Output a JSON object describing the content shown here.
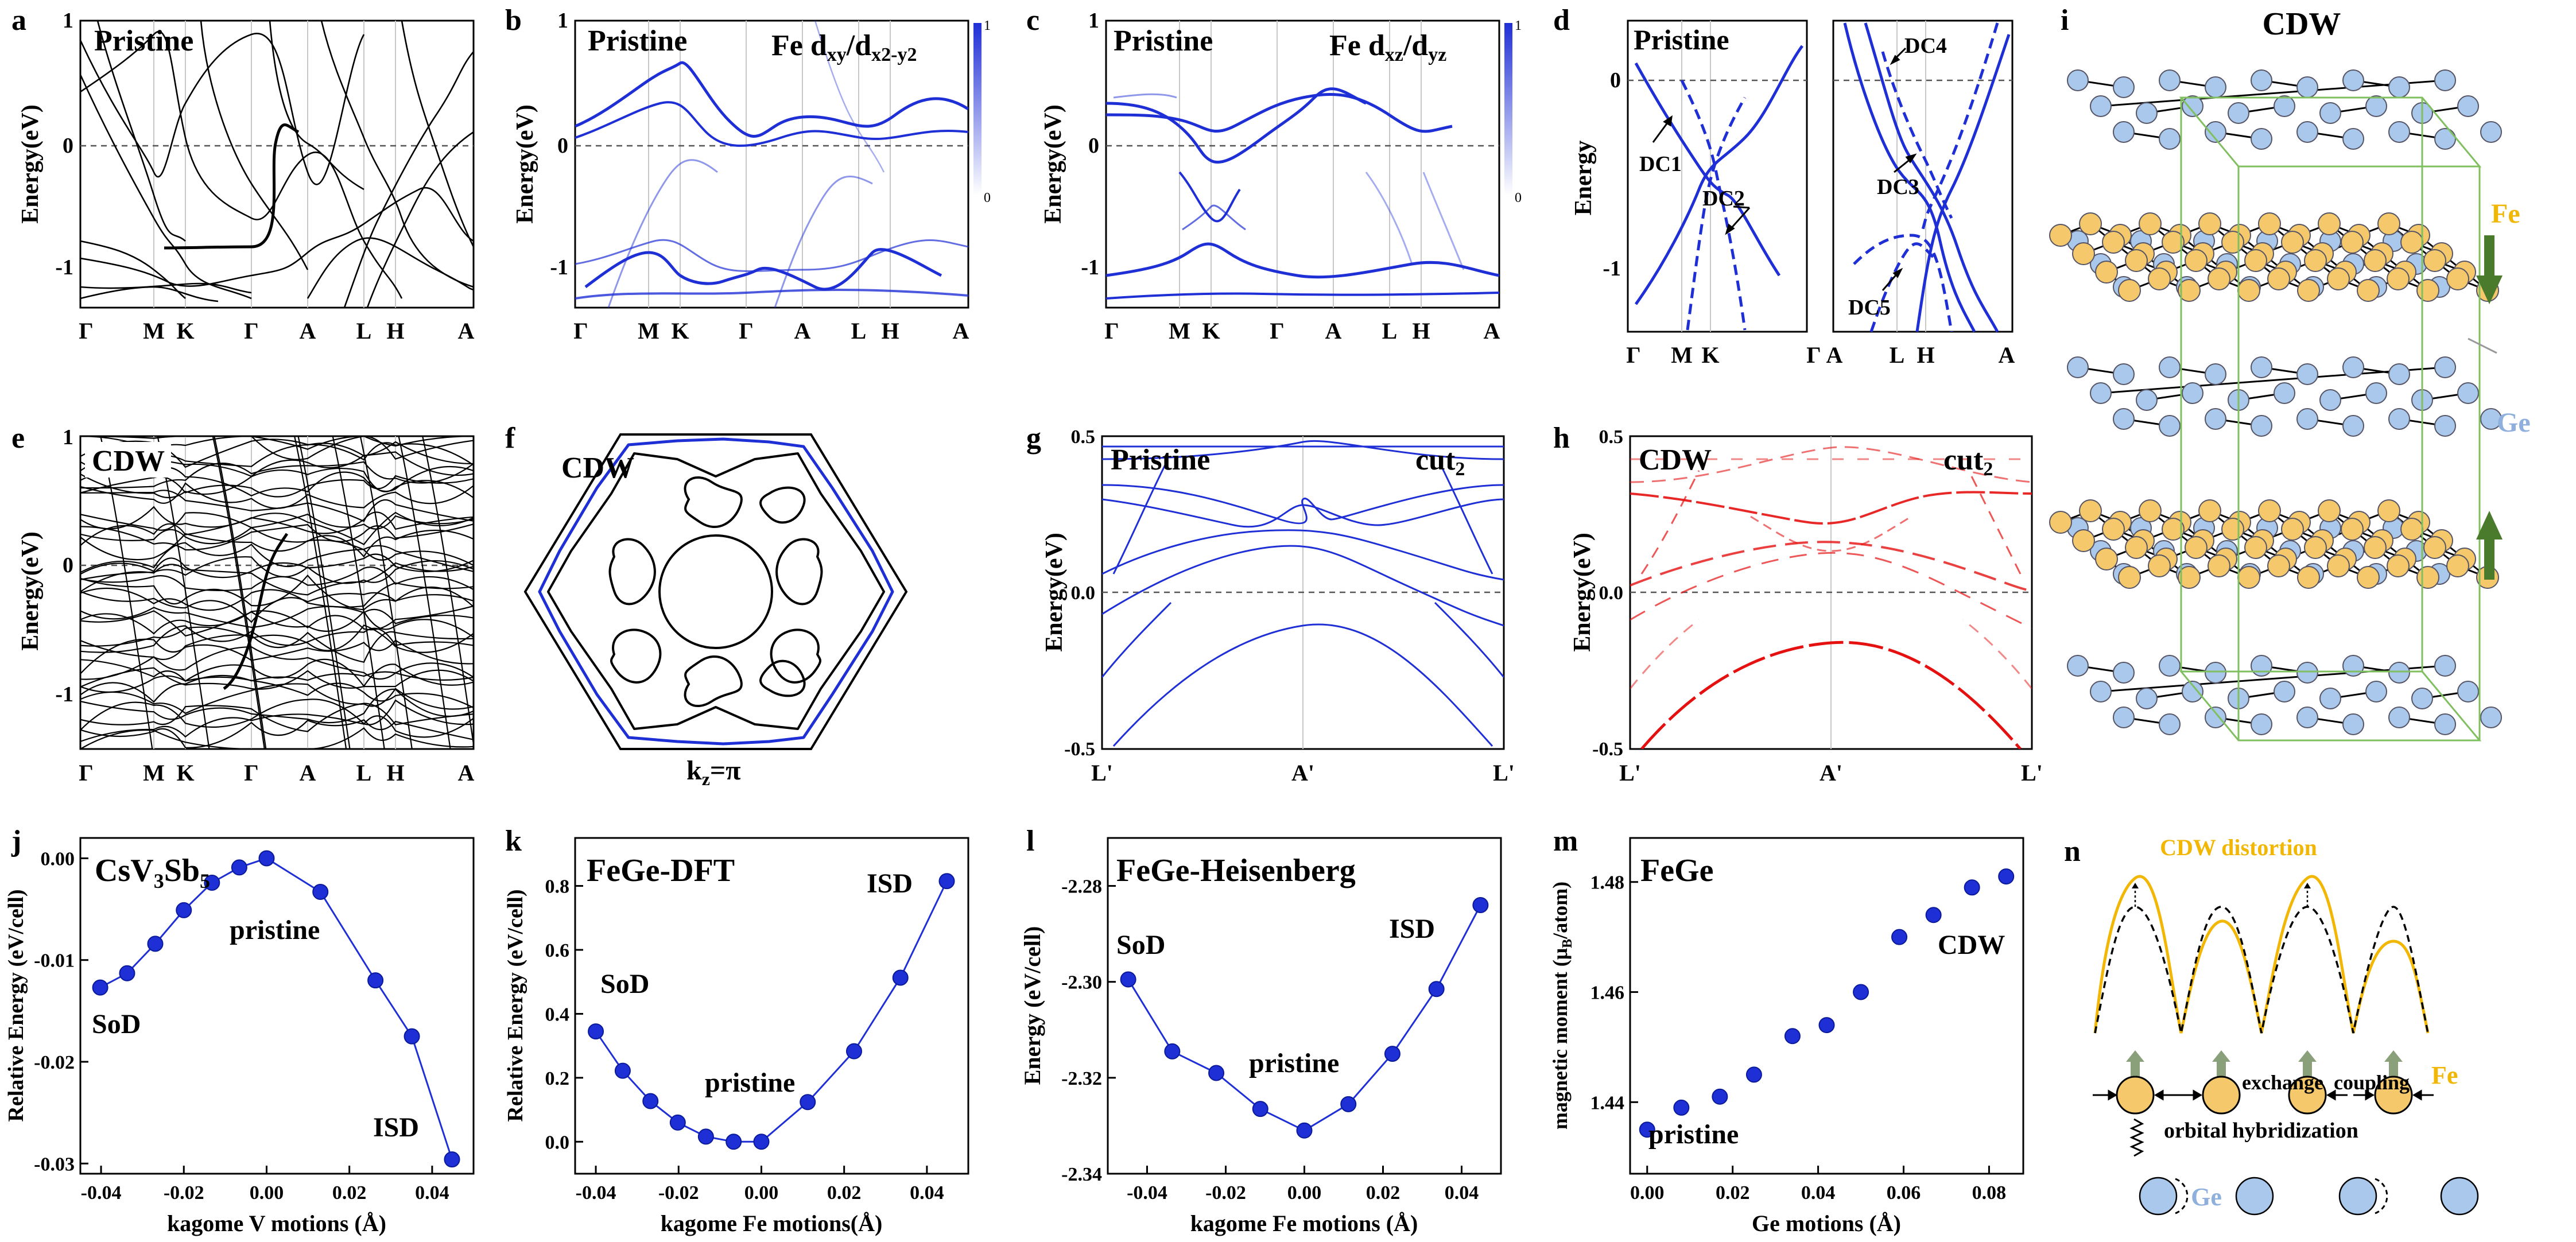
{
  "figure": {
    "panel_letters": [
      "a",
      "b",
      "c",
      "d",
      "e",
      "f",
      "g",
      "h",
      "i",
      "j",
      "k",
      "l",
      "m",
      "n"
    ],
    "colors": {
      "ink": "#000000",
      "blue": "#1f2fd6",
      "red": "#e51010",
      "fe_gold": "#f5c96b",
      "ge_blue": "#a9c8ec",
      "arrow_green": "#4a7a2b",
      "cdw_yellow": "#f2b705"
    }
  },
  "band_panels": {
    "k_ticks": [
      "Γ",
      "M",
      "K",
      "Γ",
      "A",
      "L",
      "H",
      "A"
    ],
    "k_ticks_d_left": [
      "Γ",
      "M",
      "K",
      "Γ"
    ],
    "k_ticks_d_right": [
      "A",
      "L",
      "H",
      "A"
    ],
    "k_ticks_gh": [
      "L'",
      "A'",
      "L'"
    ],
    "ylabel": "Energy(eV)",
    "ylabel_d": "Energy",
    "y_ticks": [
      "1",
      "0",
      "-1"
    ],
    "y_ticks_gh": [
      "0.5",
      "0.0",
      "-0.5"
    ],
    "colorbar_max": "1",
    "colorbar_min": "0",
    "titles": {
      "a": "Pristine",
      "b": "Pristine",
      "b_right_pre": "Fe d",
      "b_sub1": "xy",
      "b_mid": "/d",
      "b_sub2": "x2-y2",
      "c": "Pristine",
      "c_right_pre": "Fe d",
      "c_sub1": "xz",
      "c_mid": "/d",
      "c_sub2": "yz",
      "d": "Pristine",
      "e": "CDW",
      "f": "CDW",
      "f_bottom_pre": "k",
      "f_bottom_sub": "z",
      "f_bottom_post": "=π",
      "g": "Pristine",
      "g_cut": "cut",
      "g_cut_sub": "2",
      "h": "CDW",
      "h_cut": "cut",
      "h_cut_sub": "2"
    },
    "d_labels": [
      "DC1",
      "DC2",
      "DC3",
      "DC4",
      "DC5"
    ]
  },
  "structure": {
    "title": "CDW",
    "fe_label": "Fe",
    "ge_label": "Ge"
  },
  "schematic_n": {
    "title": "CDW distortion",
    "exchange": "exchange",
    "coupling": "coupling",
    "orbital": "orbital hybridization",
    "fe_label": "Fe",
    "ge_label": "Ge"
  },
  "chart_data": [
    {
      "panel": "j",
      "type": "line",
      "title_main": "CsV",
      "title_sub1": "3",
      "title_mid": "Sb",
      "title_sub2": "5",
      "xlabel": "kagome V motions (Å)",
      "ylabel": "Relative Energy (eV/cell)",
      "xlim": [
        -0.045,
        0.05
      ],
      "ylim": [
        -0.031,
        0.002
      ],
      "x_ticks": [
        -0.04,
        -0.02,
        0.0,
        0.02,
        0.04
      ],
      "x_tick_labels": [
        "-0.04",
        "-0.02",
        "0.00",
        "0.02",
        "0.04"
      ],
      "y_ticks": [
        0,
        -0.01,
        -0.02,
        -0.03
      ],
      "y_tick_labels": [
        "0.00",
        "-0.01",
        "-0.02",
        "-0.03"
      ],
      "x": [
        -0.0402,
        -0.0337,
        -0.0269,
        -0.02,
        -0.0132,
        -0.0066,
        0.0,
        0.013,
        0.0263,
        0.0351,
        0.0448
      ],
      "y": [
        -0.0127,
        -0.0113,
        -0.0084,
        -0.0051,
        -0.0024,
        -0.0009,
        0.0,
        -0.0033,
        -0.012,
        -0.0175,
        -0.0296
      ],
      "annotations": [
        "SoD",
        "pristine",
        "ISD"
      ]
    },
    {
      "panel": "k",
      "type": "line",
      "title": "FeGe-DFT",
      "xlabel": "kagome Fe motions(Å)",
      "ylabel": "Relative Energy (eV/cell)",
      "xlim": [
        -0.045,
        0.05
      ],
      "ylim": [
        -0.1,
        0.95
      ],
      "x_ticks": [
        -0.04,
        -0.02,
        0.0,
        0.02,
        0.04
      ],
      "x_tick_labels": [
        "-0.04",
        "-0.02",
        "0.00",
        "0.02",
        "0.04"
      ],
      "y_ticks": [
        0.0,
        0.2,
        0.4,
        0.6,
        0.8
      ],
      "y_tick_labels": [
        "0.0",
        "0.2",
        "0.4",
        "0.6",
        "0.8"
      ],
      "x": [
        -0.04,
        -0.0335,
        -0.0268,
        -0.0202,
        -0.0134,
        -0.0067,
        0.0,
        0.0112,
        0.0224,
        0.0336,
        0.0448
      ],
      "y": [
        0.345,
        0.222,
        0.127,
        0.06,
        0.016,
        0.0,
        0.0,
        0.124,
        0.283,
        0.513,
        0.815
      ],
      "annotations": [
        "SoD",
        "pristine",
        "ISD"
      ]
    },
    {
      "panel": "l",
      "type": "line",
      "title": "FeGe-Heisenberg",
      "xlabel": "kagome Fe motions (Å)",
      "ylabel": "Energy (eV/cell)",
      "xlim": [
        -0.05,
        0.05
      ],
      "ylim": [
        -2.34,
        -2.27
      ],
      "x_ticks": [
        -0.04,
        -0.02,
        0.0,
        0.02,
        0.04
      ],
      "x_tick_labels": [
        "-0.04",
        "-0.02",
        "0.00",
        "0.02",
        "0.04"
      ],
      "y_ticks": [
        -2.28,
        -2.3,
        -2.32,
        -2.34
      ],
      "y_tick_labels": [
        "-2.28",
        "-2.30",
        "-2.32",
        "-2.34"
      ],
      "x": [
        -0.0448,
        -0.0336,
        -0.0224,
        -0.0112,
        0.0,
        0.0112,
        0.0224,
        0.0336,
        0.0448
      ],
      "y": [
        -2.2995,
        -2.3145,
        -2.319,
        -2.3265,
        -2.331,
        -2.3255,
        -2.315,
        -2.3015,
        -2.284
      ],
      "annotations": [
        "SoD",
        "pristine",
        "ISD"
      ]
    },
    {
      "panel": "m",
      "type": "scatter",
      "title": "FeGe",
      "xlabel": "Ge motions (Å)",
      "ylabel_main": "magnetic moment (μ",
      "ylabel_sub": "B",
      "ylabel_post": "/atom)",
      "xlim": [
        -0.004,
        0.088
      ],
      "ylim": [
        1.427,
        1.488
      ],
      "x_ticks": [
        0.0,
        0.02,
        0.04,
        0.06,
        0.08
      ],
      "x_tick_labels": [
        "0.00",
        "0.02",
        "0.04",
        "0.06",
        "0.08"
      ],
      "y_ticks": [
        1.44,
        1.46,
        1.48
      ],
      "y_tick_labels": [
        "1.44",
        "1.46",
        "1.48"
      ],
      "x": [
        0.0,
        0.008,
        0.017,
        0.025,
        0.034,
        0.042,
        0.05,
        0.059,
        0.067,
        0.076,
        0.084
      ],
      "y": [
        1.435,
        1.439,
        1.441,
        1.445,
        1.452,
        1.454,
        1.46,
        1.47,
        1.474,
        1.479,
        1.481
      ],
      "annotations": [
        "pristine",
        "CDW"
      ]
    }
  ]
}
